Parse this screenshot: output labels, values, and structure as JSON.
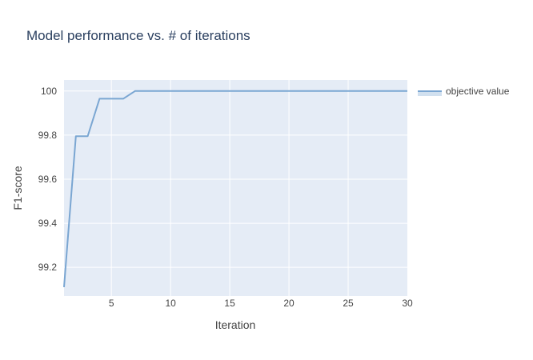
{
  "chart_data": {
    "type": "line",
    "title": "Model performance vs. # of iterations",
    "xlabel": "Iteration",
    "ylabel": "F1-score",
    "xlim": [
      1,
      30
    ],
    "ylim": [
      99.07,
      100.05
    ],
    "xticks": [
      5,
      10,
      15,
      20,
      25,
      30
    ],
    "yticks": [
      99.2,
      99.4,
      99.6,
      99.8,
      100
    ],
    "ytick_labels": [
      "99.2",
      "99.4",
      "99.6",
      "99.8",
      "100"
    ],
    "grid": true,
    "legend_position": "top-right",
    "series": [
      {
        "name": "objective value",
        "color": "#7aa6d2",
        "x": [
          1,
          2,
          3,
          4,
          5,
          6,
          7,
          8,
          9,
          10,
          11,
          12,
          13,
          14,
          15,
          16,
          17,
          18,
          19,
          20,
          21,
          22,
          23,
          24,
          25,
          26,
          27,
          28,
          29,
          30
        ],
        "y": [
          99.11,
          99.795,
          99.795,
          99.965,
          99.965,
          99.965,
          100,
          100,
          100,
          100,
          100,
          100,
          100,
          100,
          100,
          100,
          100,
          100,
          100,
          100,
          100,
          100,
          100,
          100,
          100,
          100,
          100,
          100,
          100,
          100
        ]
      }
    ]
  },
  "colors": {
    "plot_background": "#e5ecf6",
    "grid": "#ffffff",
    "text": "#444444",
    "title": "#2a3f5f"
  }
}
